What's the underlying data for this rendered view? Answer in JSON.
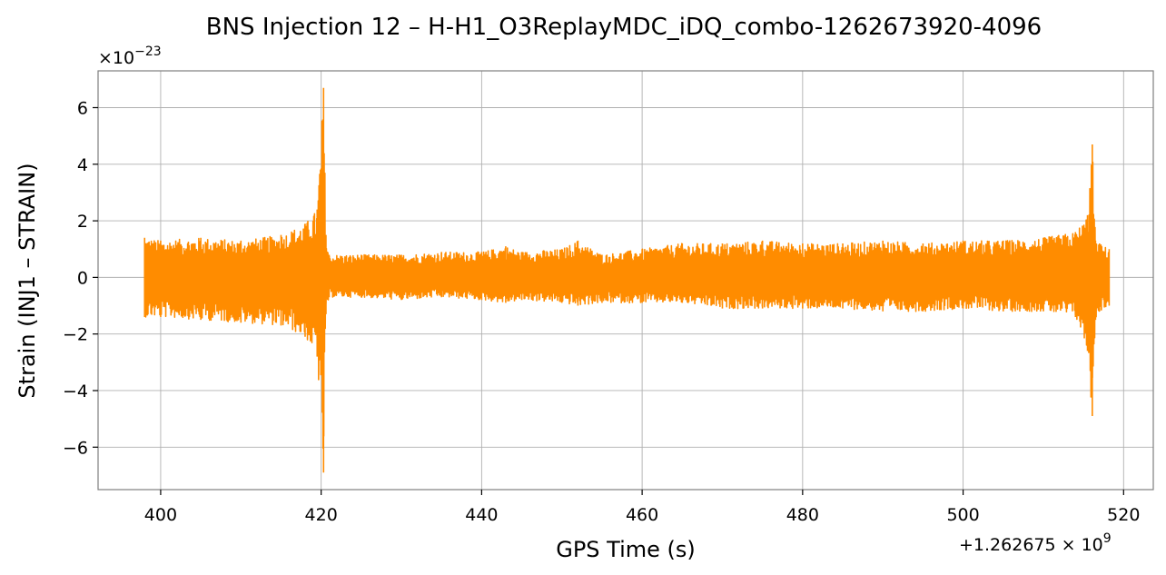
{
  "chart_data": {
    "type": "line",
    "title": "BNS Injection 12 – H-H1_O3ReplayMDC_iDQ_combo-1262673920-4096",
    "xlabel": "GPS Time (s)",
    "ylabel": "Strain (INJ1 – STRAIN)",
    "x_offset_base": "+1.262675",
    "x_offset_exp": "9",
    "y_scale_base": "×10",
    "y_scale_exp": "−23",
    "xlim": [
      392.2,
      523.7
    ],
    "ylim": [
      -7.5,
      7.3
    ],
    "x_ticks": [
      400,
      420,
      440,
      460,
      480,
      500,
      520
    ],
    "x_tick_labels": [
      "400",
      "420",
      "440",
      "460",
      "480",
      "500",
      "520"
    ],
    "y_ticks": [
      -6,
      -4,
      -2,
      0,
      2,
      4,
      6
    ],
    "y_tick_labels": [
      "−6",
      "−4",
      "−2",
      "0",
      "2",
      "4",
      "6"
    ],
    "grid": true,
    "line_color": "#ff8c00",
    "series": [
      {
        "x": [
          398.0,
          400,
          405,
          410,
          415,
          418,
          419.5,
          420.3,
          420.6,
          421.0,
          425,
          430,
          435,
          440,
          443,
          445,
          450,
          452,
          455,
          460,
          465,
          470,
          475,
          480,
          485,
          490,
          495,
          500,
          505,
          510,
          514,
          515.5,
          516.1,
          516.5,
          517,
          518.2
        ],
        "y_max": [
          1.4,
          1.3,
          1.4,
          1.3,
          1.5,
          1.9,
          2.4,
          6.7,
          1.5,
          0.8,
          0.8,
          0.8,
          0.9,
          0.9,
          1.1,
          0.9,
          1.0,
          1.3,
          0.8,
          1.0,
          1.2,
          1.2,
          1.3,
          1.2,
          1.2,
          1.3,
          1.2,
          1.3,
          1.3,
          1.4,
          1.6,
          2.2,
          4.7,
          1.3,
          1.2,
          1.0
        ],
        "y_min": [
          -1.4,
          -1.4,
          -1.5,
          -1.6,
          -1.7,
          -2.1,
          -2.8,
          -6.9,
          -1.3,
          -0.7,
          -0.7,
          -0.8,
          -0.7,
          -0.8,
          -0.9,
          -0.8,
          -0.9,
          -1.0,
          -0.9,
          -0.9,
          -0.9,
          -1.1,
          -1.1,
          -1.1,
          -1.1,
          -1.2,
          -1.2,
          -1.1,
          -1.2,
          -1.2,
          -1.4,
          -2.6,
          -4.9,
          -1.5,
          -1.2,
          -1.0
        ]
      }
    ]
  }
}
